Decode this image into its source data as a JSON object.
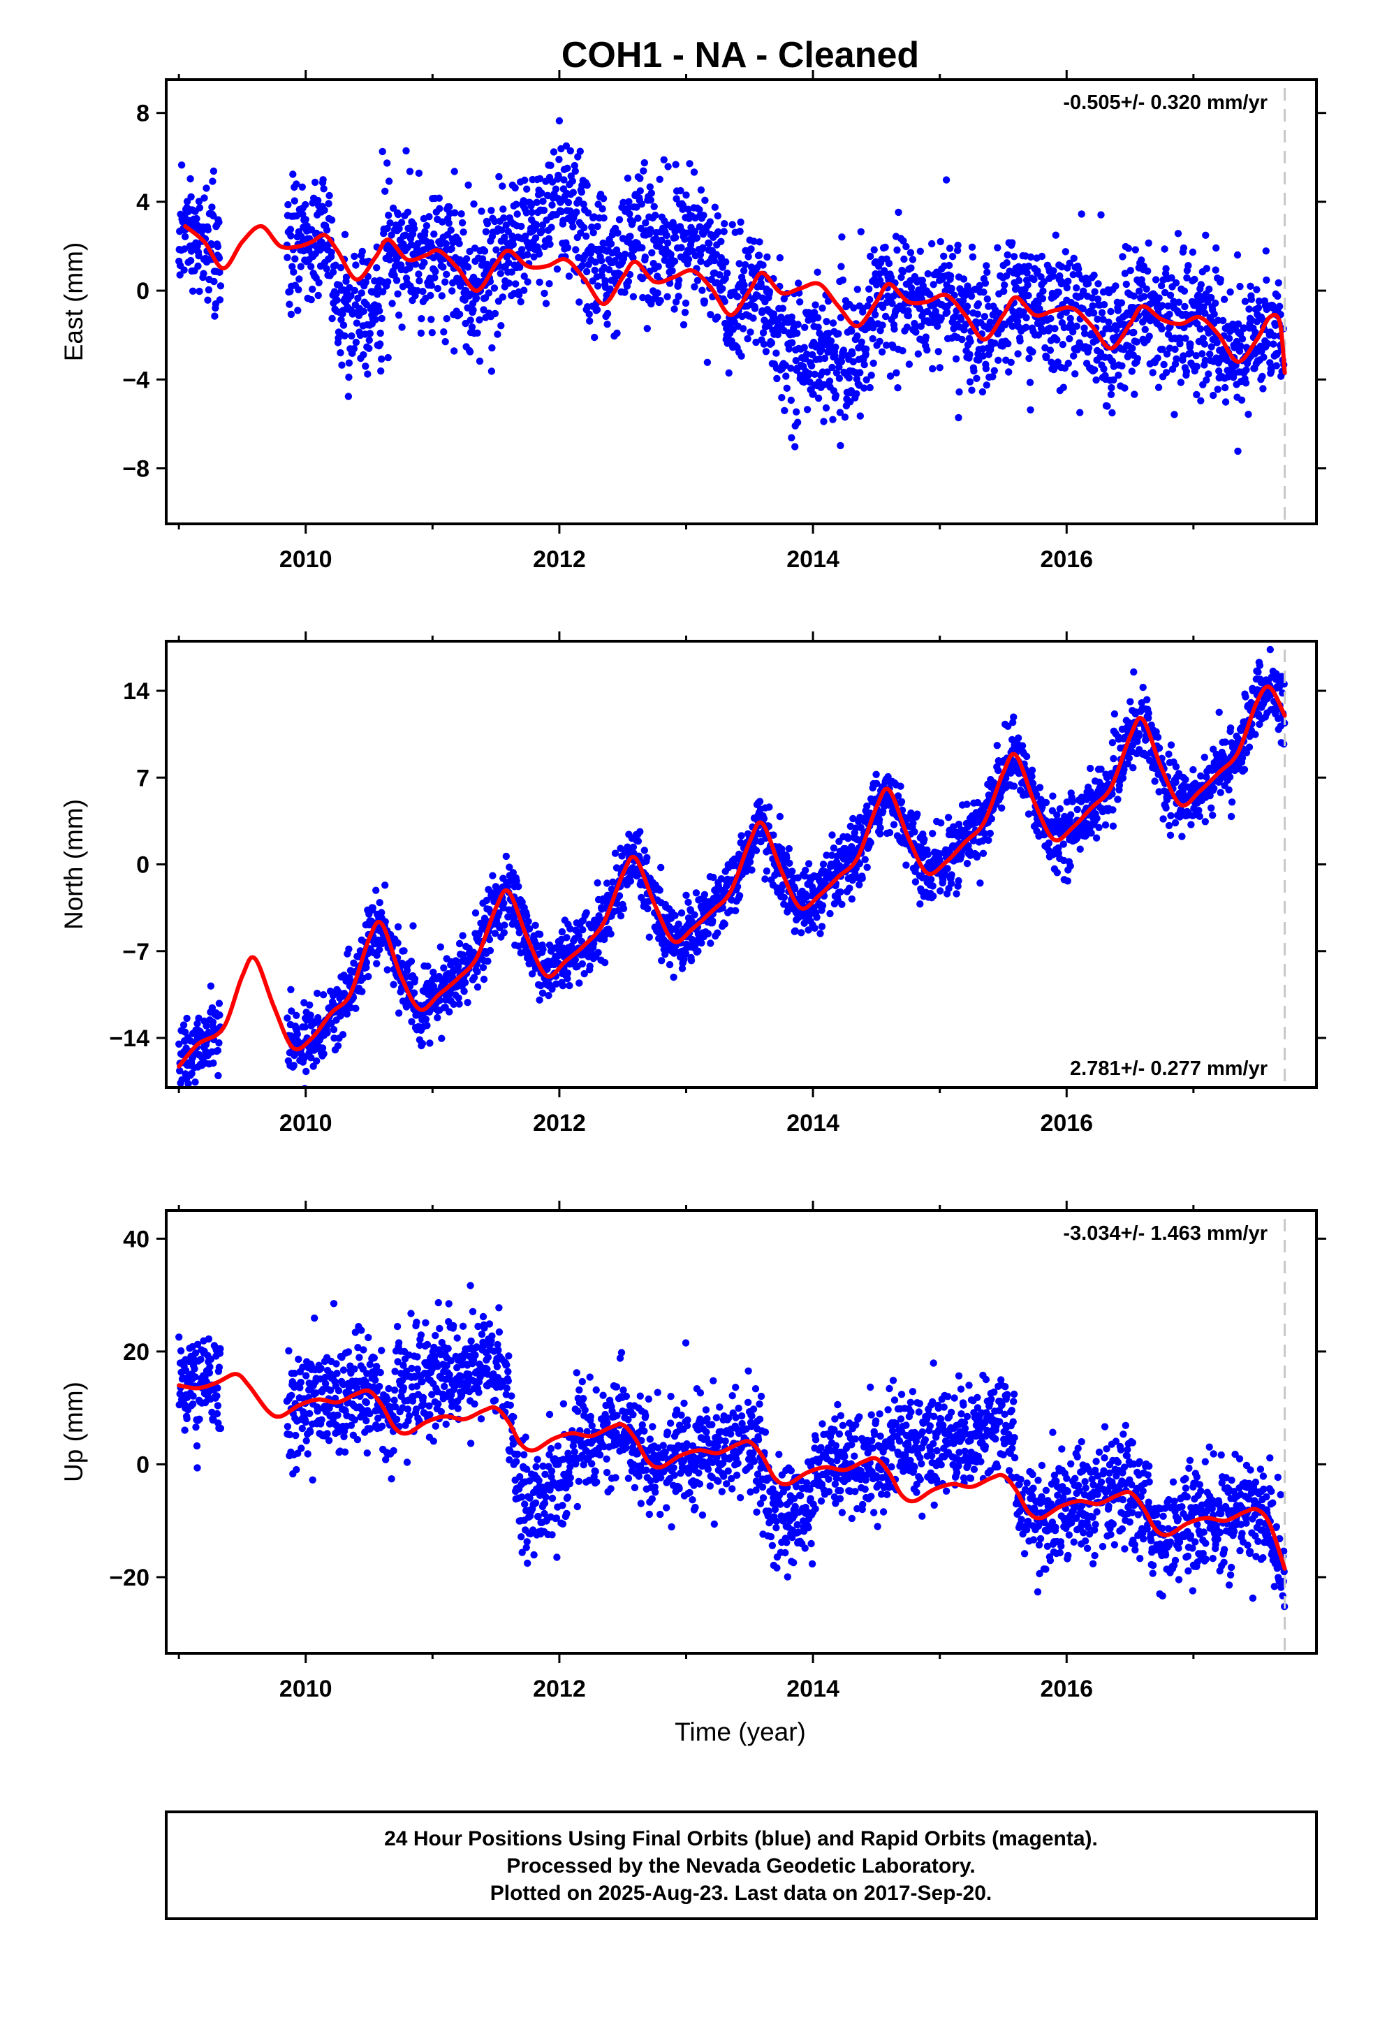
{
  "title": "COH1  - NA - Cleaned",
  "xlabel": "Time (year)",
  "colors": {
    "points": "#0000ff",
    "model": "#ff0000",
    "last_data_line": "#c8c8c8",
    "frame": "#000000"
  },
  "chart_data": [
    {
      "type": "scatter",
      "name": "east",
      "ylabel": "East (mm)",
      "rate": "-0.505+/- 0.320 mm/yr",
      "rate_position": "top-right",
      "xlim": [
        2008.9,
        2017.97
      ],
      "ylim": [
        -10.5,
        9.5
      ],
      "yticks": [
        8,
        4,
        0,
        -4,
        -8
      ],
      "ytick_labels": [
        "8",
        "4",
        "0",
        "−4",
        "−8"
      ],
      "xticks": [
        2010,
        2012,
        2014,
        2016
      ],
      "xtick_labels": [
        "2010",
        "2012",
        "2014",
        "2016"
      ],
      "last_data": 2017.72,
      "model_curve": [
        [
          2009.05,
          2.9
        ],
        [
          2009.2,
          2.2
        ],
        [
          2009.35,
          1.0
        ],
        [
          2009.5,
          2.2
        ],
        [
          2009.65,
          2.9
        ],
        [
          2009.8,
          2.0
        ],
        [
          2009.95,
          2.0
        ],
        [
          2010.05,
          2.2
        ],
        [
          2010.15,
          2.5
        ],
        [
          2010.25,
          1.8
        ],
        [
          2010.4,
          0.5
        ],
        [
          2010.55,
          1.5
        ],
        [
          2010.65,
          2.3
        ],
        [
          2010.8,
          1.4
        ],
        [
          2010.95,
          1.6
        ],
        [
          2011.05,
          1.8
        ],
        [
          2011.2,
          1.0
        ],
        [
          2011.35,
          0.0
        ],
        [
          2011.5,
          1.2
        ],
        [
          2011.6,
          1.8
        ],
        [
          2011.75,
          1.1
        ],
        [
          2011.9,
          1.1
        ],
        [
          2012.05,
          1.4
        ],
        [
          2012.2,
          0.5
        ],
        [
          2012.35,
          -0.6
        ],
        [
          2012.5,
          0.6
        ],
        [
          2012.6,
          1.3
        ],
        [
          2012.75,
          0.4
        ],
        [
          2012.9,
          0.6
        ],
        [
          2013.05,
          0.9
        ],
        [
          2013.2,
          0.1
        ],
        [
          2013.35,
          -1.1
        ],
        [
          2013.5,
          0.0
        ],
        [
          2013.6,
          0.8
        ],
        [
          2013.75,
          -0.1
        ],
        [
          2013.9,
          0.1
        ],
        [
          2014.05,
          0.3
        ],
        [
          2014.2,
          -0.7
        ],
        [
          2014.35,
          -1.6
        ],
        [
          2014.5,
          -0.5
        ],
        [
          2014.6,
          0.3
        ],
        [
          2014.75,
          -0.5
        ],
        [
          2014.9,
          -0.5
        ],
        [
          2015.05,
          -0.2
        ],
        [
          2015.2,
          -1.1
        ],
        [
          2015.35,
          -2.2
        ],
        [
          2015.5,
          -1.1
        ],
        [
          2015.6,
          -0.3
        ],
        [
          2015.75,
          -1.1
        ],
        [
          2015.9,
          -0.9
        ],
        [
          2016.05,
          -0.8
        ],
        [
          2016.2,
          -1.6
        ],
        [
          2016.35,
          -2.6
        ],
        [
          2016.5,
          -1.5
        ],
        [
          2016.6,
          -0.7
        ],
        [
          2016.75,
          -1.3
        ],
        [
          2016.9,
          -1.5
        ],
        [
          2017.05,
          -1.2
        ],
        [
          2017.2,
          -2.0
        ],
        [
          2017.35,
          -3.2
        ],
        [
          2017.5,
          -2.2
        ],
        [
          2017.6,
          -1.2
        ],
        [
          2017.68,
          -1.4
        ],
        [
          2017.72,
          -3.7
        ]
      ]
    },
    {
      "type": "scatter",
      "name": "north",
      "ylabel": "North (mm)",
      "rate": "2.781+/- 0.277 mm/yr",
      "rate_position": "bottom-right",
      "xlim": [
        2008.9,
        2017.97
      ],
      "ylim": [
        -18,
        18
      ],
      "yticks": [
        14,
        7,
        0,
        -7,
        -14
      ],
      "ytick_labels": [
        "14",
        "7",
        "0",
        "−7",
        "−14"
      ],
      "xticks": [
        2010,
        2012,
        2014,
        2016
      ],
      "xtick_labels": [
        "2010",
        "2012",
        "2014",
        "2016"
      ],
      "last_data": 2017.72,
      "model_curve": [
        [
          2009.0,
          -16.3
        ],
        [
          2009.15,
          -14.5
        ],
        [
          2009.35,
          -13.2
        ],
        [
          2009.5,
          -9.0
        ],
        [
          2009.6,
          -7.6
        ],
        [
          2009.75,
          -11.5
        ],
        [
          2009.9,
          -14.8
        ],
        [
          2010.05,
          -14.0
        ],
        [
          2010.2,
          -12.0
        ],
        [
          2010.35,
          -10.5
        ],
        [
          2010.5,
          -6.0
        ],
        [
          2010.6,
          -4.8
        ],
        [
          2010.75,
          -9.0
        ],
        [
          2010.9,
          -11.7
        ],
        [
          2011.05,
          -10.5
        ],
        [
          2011.2,
          -9.2
        ],
        [
          2011.35,
          -7.5
        ],
        [
          2011.5,
          -3.5
        ],
        [
          2011.6,
          -2.2
        ],
        [
          2011.75,
          -6.0
        ],
        [
          2011.9,
          -9.0
        ],
        [
          2012.05,
          -7.8
        ],
        [
          2012.2,
          -6.5
        ],
        [
          2012.35,
          -4.7
        ],
        [
          2012.5,
          -0.8
        ],
        [
          2012.6,
          0.5
        ],
        [
          2012.75,
          -3.2
        ],
        [
          2012.9,
          -6.2
        ],
        [
          2013.05,
          -5.2
        ],
        [
          2013.2,
          -3.8
        ],
        [
          2013.35,
          -2.2
        ],
        [
          2013.5,
          1.8
        ],
        [
          2013.6,
          3.3
        ],
        [
          2013.75,
          -0.5
        ],
        [
          2013.9,
          -3.5
        ],
        [
          2014.05,
          -2.5
        ],
        [
          2014.2,
          -1.0
        ],
        [
          2014.35,
          0.5
        ],
        [
          2014.5,
          4.6
        ],
        [
          2014.6,
          6.0
        ],
        [
          2014.75,
          2.2
        ],
        [
          2014.9,
          -0.7
        ],
        [
          2015.05,
          0.2
        ],
        [
          2015.2,
          1.8
        ],
        [
          2015.35,
          3.4
        ],
        [
          2015.5,
          7.4
        ],
        [
          2015.6,
          8.8
        ],
        [
          2015.75,
          4.9
        ],
        [
          2015.9,
          2.0
        ],
        [
          2016.05,
          3.0
        ],
        [
          2016.2,
          4.6
        ],
        [
          2016.35,
          6.2
        ],
        [
          2016.5,
          10.3
        ],
        [
          2016.6,
          11.7
        ],
        [
          2016.75,
          7.7
        ],
        [
          2016.9,
          4.8
        ],
        [
          2017.05,
          5.9
        ],
        [
          2017.2,
          7.4
        ],
        [
          2017.35,
          9.0
        ],
        [
          2017.5,
          13.1
        ],
        [
          2017.6,
          14.3
        ],
        [
          2017.72,
          12.0
        ]
      ]
    },
    {
      "type": "scatter",
      "name": "up",
      "ylabel": "Up (mm)",
      "rate": "-3.034+/- 1.463 mm/yr",
      "rate_position": "top-right",
      "xlim": [
        2008.9,
        2017.97
      ],
      "ylim": [
        -33.5,
        45
      ],
      "yticks": [
        40,
        20,
        0,
        -20
      ],
      "ytick_labels": [
        "40",
        "20",
        "0",
        "−20"
      ],
      "xticks": [
        2010,
        2012,
        2014,
        2016
      ],
      "xtick_labels": [
        "2010",
        "2012",
        "2014",
        "2016"
      ],
      "last_data": 2017.72,
      "model_curve": [
        [
          2009.0,
          14.0
        ],
        [
          2009.15,
          13.5
        ],
        [
          2009.3,
          14.5
        ],
        [
          2009.45,
          16.0
        ],
        [
          2009.55,
          14.0
        ],
        [
          2009.7,
          9.5
        ],
        [
          2009.8,
          8.5
        ],
        [
          2009.95,
          10.5
        ],
        [
          2010.1,
          11.5
        ],
        [
          2010.25,
          11.0
        ],
        [
          2010.4,
          12.5
        ],
        [
          2010.5,
          13.0
        ],
        [
          2010.6,
          10.5
        ],
        [
          2010.7,
          6.5
        ],
        [
          2010.8,
          5.5
        ],
        [
          2010.95,
          7.5
        ],
        [
          2011.1,
          8.5
        ],
        [
          2011.25,
          8.0
        ],
        [
          2011.4,
          9.5
        ],
        [
          2011.5,
          10.0
        ],
        [
          2011.6,
          7.5
        ],
        [
          2011.7,
          3.5
        ],
        [
          2011.8,
          2.5
        ],
        [
          2011.95,
          4.5
        ],
        [
          2012.1,
          5.5
        ],
        [
          2012.25,
          5.0
        ],
        [
          2012.4,
          6.5
        ],
        [
          2012.5,
          7.0
        ],
        [
          2012.6,
          4.5
        ],
        [
          2012.7,
          0.5
        ],
        [
          2012.8,
          -0.5
        ],
        [
          2012.95,
          1.5
        ],
        [
          2013.1,
          2.5
        ],
        [
          2013.25,
          2.0
        ],
        [
          2013.4,
          3.5
        ],
        [
          2013.5,
          4.0
        ],
        [
          2013.6,
          1.5
        ],
        [
          2013.7,
          -2.5
        ],
        [
          2013.8,
          -3.5
        ],
        [
          2013.95,
          -1.5
        ],
        [
          2014.1,
          -0.5
        ],
        [
          2014.25,
          -1.0
        ],
        [
          2014.4,
          0.5
        ],
        [
          2014.5,
          1.0
        ],
        [
          2014.6,
          -1.5
        ],
        [
          2014.7,
          -5.5
        ],
        [
          2014.8,
          -6.5
        ],
        [
          2014.95,
          -4.5
        ],
        [
          2015.1,
          -3.5
        ],
        [
          2015.25,
          -4.0
        ],
        [
          2015.4,
          -2.5
        ],
        [
          2015.5,
          -2.0
        ],
        [
          2015.6,
          -4.5
        ],
        [
          2015.7,
          -8.5
        ],
        [
          2015.8,
          -9.5
        ],
        [
          2015.95,
          -7.5
        ],
        [
          2016.1,
          -6.5
        ],
        [
          2016.25,
          -7.0
        ],
        [
          2016.4,
          -5.5
        ],
        [
          2016.5,
          -5.0
        ],
        [
          2016.6,
          -7.5
        ],
        [
          2016.7,
          -11.5
        ],
        [
          2016.8,
          -12.5
        ],
        [
          2016.95,
          -10.5
        ],
        [
          2017.1,
          -9.5
        ],
        [
          2017.25,
          -10.0
        ],
        [
          2017.4,
          -8.5
        ],
        [
          2017.5,
          -8.0
        ],
        [
          2017.6,
          -10.5
        ],
        [
          2017.72,
          -18.5
        ]
      ]
    }
  ],
  "note": {
    "line1": "24 Hour Positions Using Final Orbits (blue) and Rapid Orbits (magenta).",
    "line2": "Processed by the Nevada Geodetic Laboratory.",
    "line3": "Plotted on 2025-Aug-23. Last data on 2017-Sep-20."
  }
}
